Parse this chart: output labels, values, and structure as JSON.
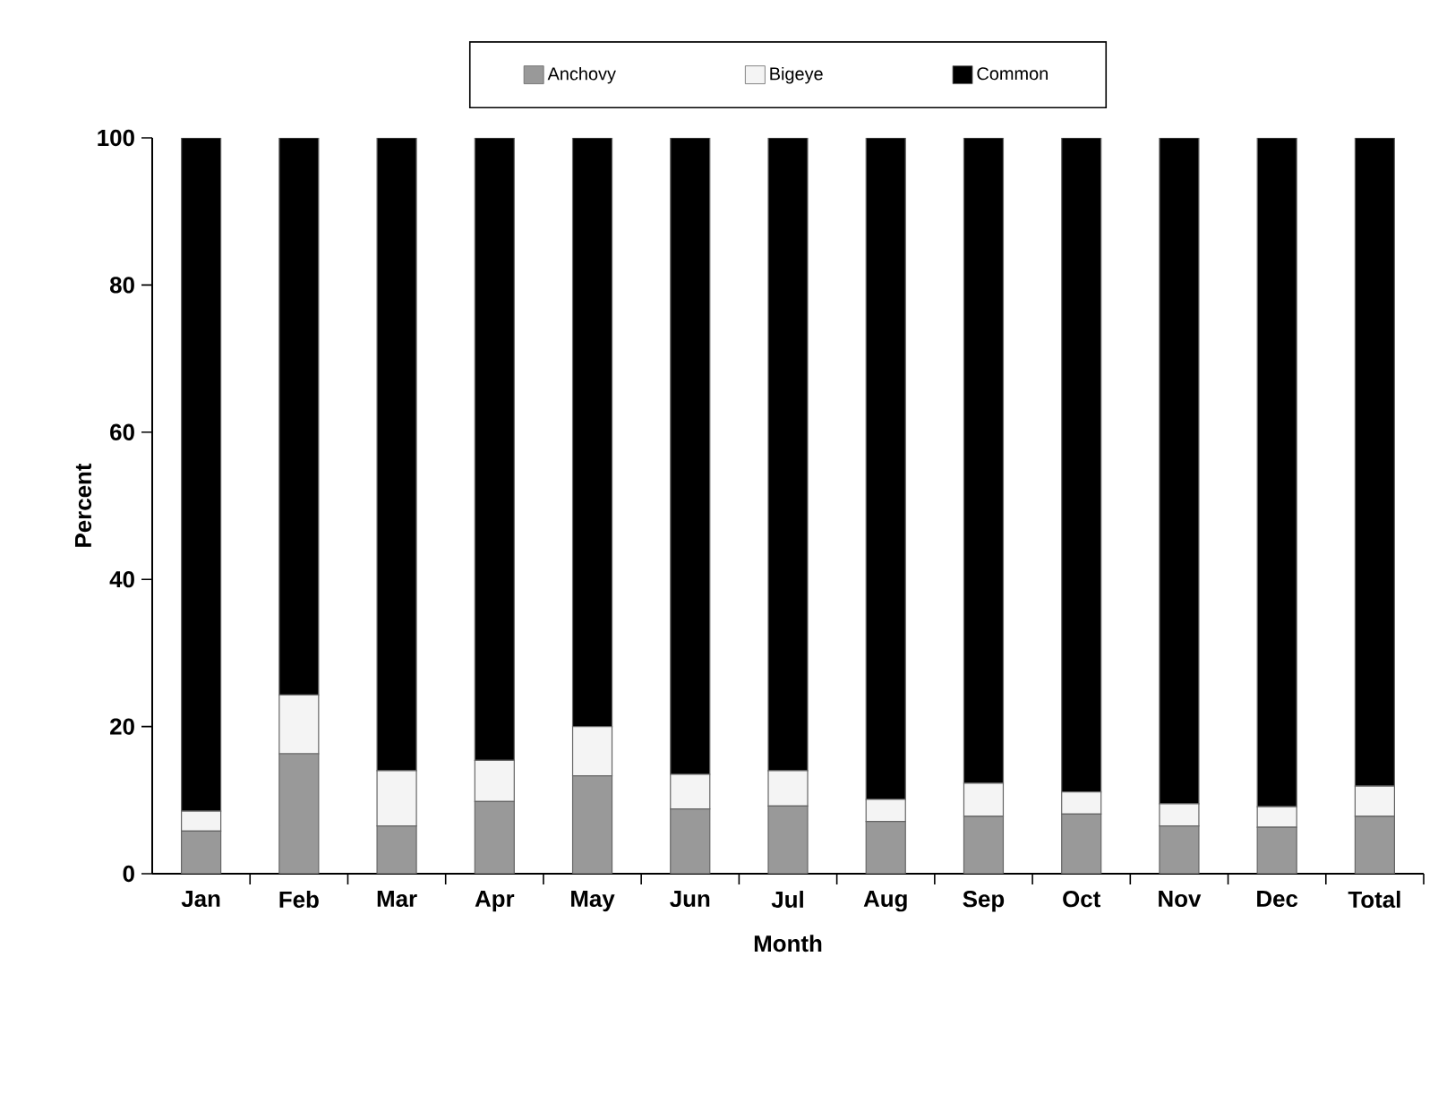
{
  "chart_data": {
    "type": "bar",
    "stacked": true,
    "xlabel": "Month",
    "ylabel": "Percent",
    "categories": [
      "Jan",
      "Feb",
      "Mar",
      "Apr",
      "May",
      "Jun",
      "Jul",
      "Aug",
      "Sep",
      "Oct",
      "Nov",
      "Dec",
      "Total"
    ],
    "series": [
      {
        "name": "Anchovy",
        "color": "#999999",
        "values": [
          5.8,
          16.3,
          6.5,
          9.8,
          13.3,
          8.8,
          9.2,
          7.1,
          7.8,
          8.1,
          6.5,
          6.3,
          7.8
        ]
      },
      {
        "name": "Bigeye",
        "color": "#f4f4f4",
        "values": [
          2.7,
          8.0,
          7.5,
          5.6,
          6.7,
          4.7,
          4.8,
          3.0,
          4.5,
          3.0,
          3.0,
          2.8,
          4.1
        ]
      },
      {
        "name": "Common",
        "color": "#000000",
        "values": [
          91.5,
          75.7,
          86.0,
          84.6,
          80.0,
          86.5,
          86.0,
          89.9,
          87.7,
          88.9,
          90.5,
          90.9,
          88.1
        ]
      }
    ],
    "ylim": [
      0,
      100
    ],
    "yticks": [
      0,
      20,
      40,
      60,
      80,
      100
    ],
    "grid": false,
    "legend": "top"
  }
}
